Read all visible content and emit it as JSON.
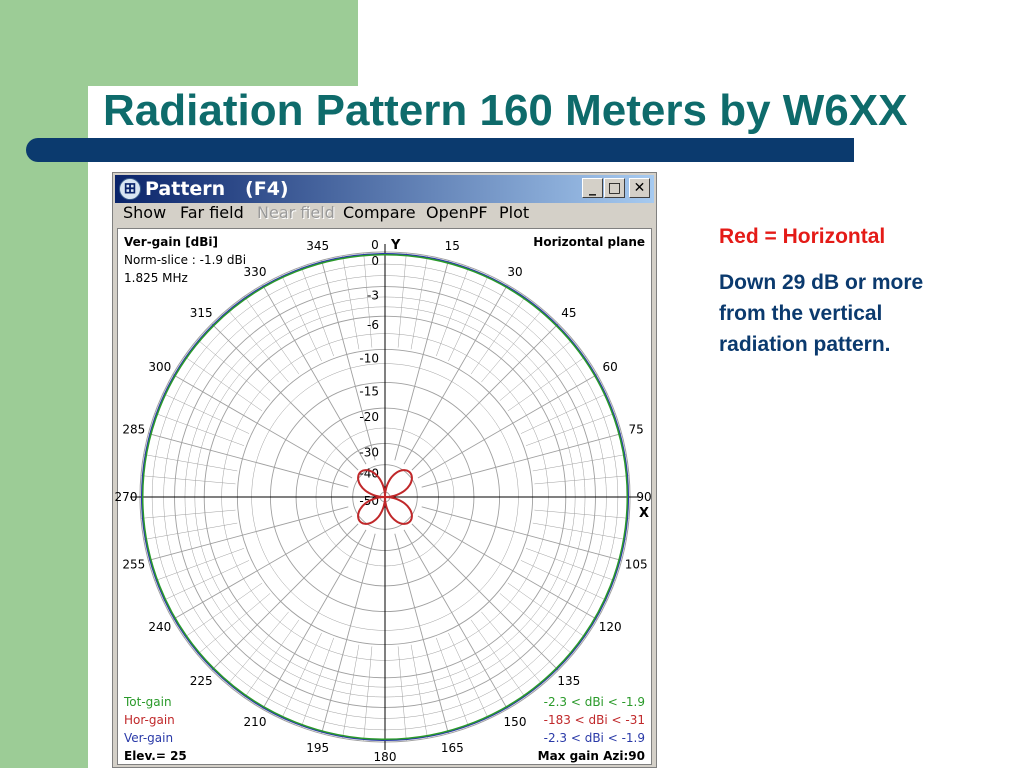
{
  "slide": {
    "title": "Radiation Pattern 160 Meters by W6XX",
    "notes": [
      "Red = Horizontal",
      "Down 29 dB or more from the vertical radiation pattern."
    ],
    "colors": {
      "title": "#0e6b6b",
      "bar": "#0b3a6e",
      "band": "#9ccc96",
      "note_red": "#e41b17",
      "note_blue": "#0b3a6e"
    }
  },
  "window": {
    "title": "Pattern   (F4)",
    "icon": "antenna-app-icon",
    "controls": [
      "_",
      "□",
      "✕"
    ],
    "menu": [
      "Show",
      "Far field",
      "Near field",
      "Compare",
      "OpenPF",
      "Plot"
    ],
    "menu_disabled": [
      "Near field"
    ]
  },
  "plot": {
    "header_left": [
      "Ver-gain [dBi]",
      "Norm-slice : -1.9 dBi",
      "1.825 MHz"
    ],
    "header_right": "Horizontal plane",
    "y_axis_label": "Y",
    "x_axis_label": "X",
    "legend": [
      {
        "name": "Tot-gain",
        "range": "-2.3 < dBi < -1.9",
        "color": "#2a9a2a"
      },
      {
        "name": "Hor-gain",
        "range": "-183 < dBi < -31",
        "color": "#c0282a"
      },
      {
        "name": "Ver-gain",
        "range": "-2.3 < dBi < -1.9",
        "color": "#2a3aa8"
      }
    ],
    "footer_left": "Elev.= 25",
    "footer_right": "Max gain Azi:90"
  },
  "chart_data": {
    "type": "polar",
    "angle_labels": [
      "0",
      "15",
      "30",
      "45",
      "60",
      "75",
      "90",
      "105",
      "120",
      "135",
      "150",
      "165",
      "180",
      "195",
      "210",
      "225",
      "240",
      "255",
      "270",
      "285",
      "300",
      "315",
      "330",
      "345"
    ],
    "radial_ticks_db": [
      0,
      -3,
      -6,
      -10,
      -15,
      -20,
      -30,
      -40,
      -50
    ],
    "radial_tick_labels": [
      "0",
      "-3",
      "-6",
      "-10",
      "-15",
      "-20",
      "-30",
      "-40",
      "-50"
    ],
    "series": [
      {
        "name": "Tot-gain",
        "color": "#2a9a2a",
        "shape": "near-circle",
        "level_db": -0.2
      },
      {
        "name": "Ver-gain",
        "color": "#2a3aa8",
        "shape": "near-circle",
        "level_db": -0.2
      },
      {
        "name": "Hor-gain",
        "color": "#c0282a",
        "shape": "four-lobe",
        "lobe_azimuths_deg": [
          45,
          135,
          225,
          315
        ],
        "peak_db": -31
      }
    ]
  }
}
